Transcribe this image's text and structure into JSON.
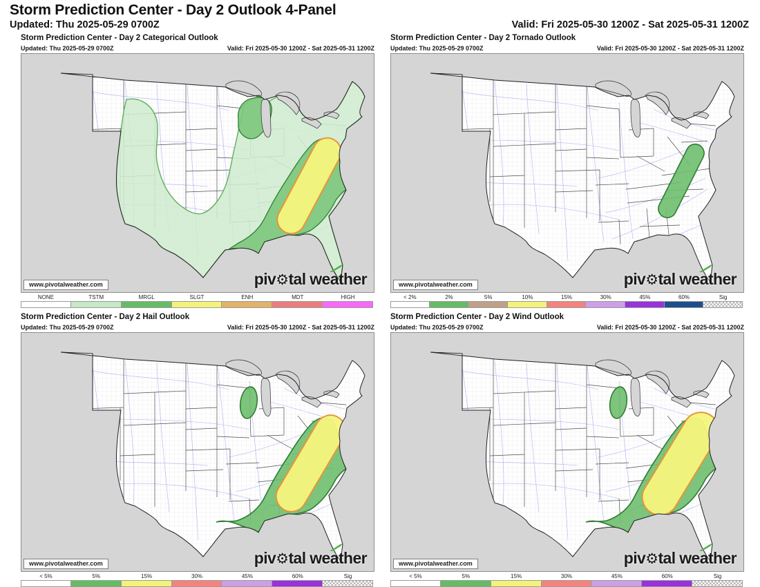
{
  "page": {
    "title": "Storm Prediction Center - Day 2 Outlook 4-Panel",
    "updated": "Updated: Thu 2025-05-29 0700Z",
    "valid": "Valid: Fri 2025-05-30 1200Z - Sat 2025-05-31 1200Z"
  },
  "branding": {
    "watermark_url": "www.pivotalweather.com",
    "logo_prefix": "piv",
    "logo_gear": "⚙",
    "logo_suffix": "tal weather",
    "logo_accent_color": "#56b04e"
  },
  "panels": [
    {
      "title": "Storm Prediction Center - Day 2 Categorical Outlook",
      "updated": "Updated: Thu 2025-05-29 0700Z",
      "valid": "Valid: Fri 2025-05-30 1200Z - Sat 2025-05-31 1200Z",
      "legend": [
        {
          "label": "NONE",
          "color": "#ffffff"
        },
        {
          "label": "TSTM",
          "color": "#c6e8c6"
        },
        {
          "label": "MRGL",
          "color": "#66bb66"
        },
        {
          "label": "SLGT",
          "color": "#f3f37c"
        },
        {
          "label": "ENH",
          "color": "#e0b368"
        },
        {
          "label": "MDT",
          "color": "#ea7d7d"
        },
        {
          "label": "HIGH",
          "color": "#f869f8"
        }
      ],
      "areas": [
        {
          "label": "TSTM",
          "color": "#cfeccf",
          "border": "#5fae5f",
          "region": "central and eastern US"
        },
        {
          "label": "MRGL",
          "color": "#7cc77c",
          "border": "#2e7d32",
          "region": "upper Midwest and Southeast"
        },
        {
          "label": "SLGT",
          "color": "#f5f57e",
          "border": "#e8953a",
          "region": "Georgia to Virginia"
        }
      ]
    },
    {
      "title": "Storm Prediction Center - Day 2 Tornado Outlook",
      "updated": "Updated: Thu 2025-05-29 0700Z",
      "valid": "Valid: Fri 2025-05-30 1200Z - Sat 2025-05-31 1200Z",
      "legend": [
        {
          "label": "< 2%",
          "color": "#ffffff"
        },
        {
          "label": "2%",
          "color": "#66bb66"
        },
        {
          "label": "5%",
          "color": "#c0a088"
        },
        {
          "label": "10%",
          "color": "#f3f37c"
        },
        {
          "label": "15%",
          "color": "#f4837d"
        },
        {
          "label": "30%",
          "color": "#cc9fe6"
        },
        {
          "label": "45%",
          "color": "#9633d9"
        },
        {
          "label": "60%",
          "color": "#1d4f8c"
        },
        {
          "label": "Sig",
          "hatch": true
        }
      ],
      "areas": [
        {
          "label": "2%",
          "color": "#6fbe6f",
          "border": "#2e7d32",
          "region": "Georgia to Virginia"
        }
      ]
    },
    {
      "title": "Storm Prediction Center - Day 2 Hail Outlook",
      "updated": "Updated: Thu 2025-05-29 0700Z",
      "valid": "Valid: Fri 2025-05-30 1200Z - Sat 2025-05-31 1200Z",
      "legend": [
        {
          "label": "< 5%",
          "color": "#ffffff"
        },
        {
          "label": "5%",
          "color": "#66bb66"
        },
        {
          "label": "15%",
          "color": "#f3f37c"
        },
        {
          "label": "30%",
          "color": "#f4837d"
        },
        {
          "label": "45%",
          "color": "#cc9fe6"
        },
        {
          "label": "60%",
          "color": "#9633d9"
        },
        {
          "label": "Sig",
          "hatch": true
        }
      ],
      "areas": [
        {
          "label": "5%",
          "color": "#6fbe6f",
          "border": "#2e7d32",
          "region": "Southeast US and SE Wisconsin"
        },
        {
          "label": "15%",
          "color": "#f5f57e",
          "border": "#e8953a",
          "region": "Georgia to Virginia"
        }
      ]
    },
    {
      "title": "Storm Prediction Center - Day 2 Wind Outlook",
      "updated": "Updated: Thu 2025-05-29 0700Z",
      "valid": "Valid: Fri 2025-05-30 1200Z - Sat 2025-05-31 1200Z",
      "legend": [
        {
          "label": "< 5%",
          "color": "#ffffff"
        },
        {
          "label": "5%",
          "color": "#66bb66"
        },
        {
          "label": "15%",
          "color": "#f3f37c"
        },
        {
          "label": "30%",
          "color": "#f4837d"
        },
        {
          "label": "45%",
          "color": "#cc9fe6"
        },
        {
          "label": "60%",
          "color": "#9633d9"
        },
        {
          "label": "Sig",
          "hatch": true
        }
      ],
      "areas": [
        {
          "label": "5%",
          "color": "#6fbe6f",
          "border": "#2e7d32",
          "region": "Southeast US and SE Wisconsin"
        },
        {
          "label": "15%",
          "color": "#f5f57e",
          "border": "#e8953a",
          "region": "Georgia to Virginia"
        }
      ]
    }
  ]
}
